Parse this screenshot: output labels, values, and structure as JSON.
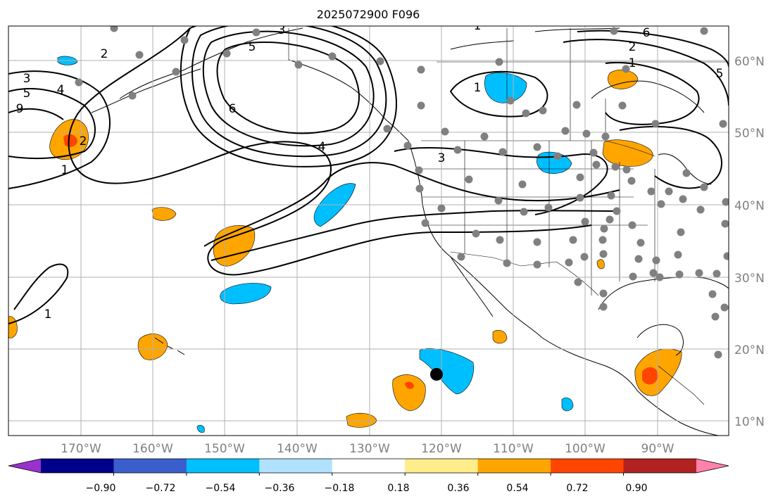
{
  "title": "2025072900 F096",
  "lon_labels": [
    "170°W",
    "160°W",
    "150°W",
    "140°W",
    "130°W",
    "120°W",
    "110°W",
    "100°W",
    "90°W"
  ],
  "lat_labels": [
    "60°N",
    "50°N",
    "40°N",
    "30°N",
    "20°N",
    "10°N"
  ],
  "contour_labels": [
    "3",
    "2",
    "5",
    "4",
    "3",
    "6",
    "1",
    "2",
    "1",
    "6",
    "5",
    "4",
    "3",
    "1",
    "1",
    "2",
    "9",
    "5",
    "1"
  ],
  "colorbar": {
    "ticks": [
      "−0.90",
      "−0.72",
      "−0.54",
      "−0.36",
      "−0.18",
      "0.18",
      "0.36",
      "0.54",
      "0.72",
      "0.90"
    ],
    "colors": [
      "#9932cc",
      "#00008b",
      "#3a5fcd",
      "#00bfff",
      "#b0e2ff",
      "#ffffff",
      "#ffec8b",
      "#ffa500",
      "#ff4500",
      "#b22222",
      "#ff82ab"
    ]
  },
  "colors": {
    "coast": "#000000",
    "grid": "#b0b0b0",
    "station": "#808080",
    "contour": "#000000"
  }
}
